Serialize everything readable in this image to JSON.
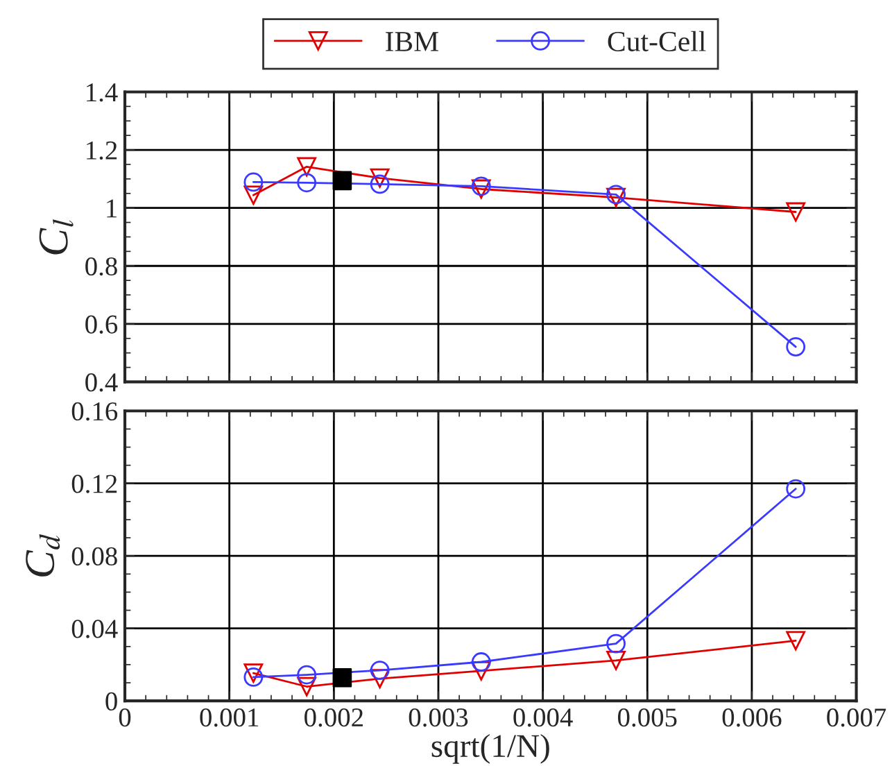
{
  "chart_data": [
    {
      "type": "line",
      "ylabel": "C$_{l}$",
      "xlim": [
        0,
        0.007
      ],
      "ylim": [
        0.4,
        1.4
      ],
      "yticks": [
        0.4,
        0.6,
        0.8,
        1,
        1.2,
        1.4
      ],
      "tick_labels": "y",
      "grid": true,
      "legend": "top",
      "series": [
        {
          "type": "scatter",
          "marker": "square",
          "color": "#000000",
          "x": [
            0.00208
          ],
          "values": [
            1.094
          ]
        },
        {
          "name": "IBM",
          "marker": "triangle",
          "color": "#e00000",
          "x": [
            0.00123,
            0.00174,
            0.00244,
            0.00341,
            0.0047,
            0.00642
          ],
          "values": [
            1.044,
            1.142,
            1.103,
            1.065,
            1.036,
            0.986
          ]
        },
        {
          "name": "Cut-Cell",
          "marker": "circle",
          "color": "#3a3aff",
          "x": [
            0.00123,
            0.00174,
            0.00244,
            0.00341,
            0.0047,
            0.00642
          ],
          "values": [
            1.089,
            1.087,
            1.082,
            1.075,
            1.046,
            0.521
          ]
        }
      ]
    },
    {
      "type": "line",
      "ylabel": "C$_{d}$",
      "xlabel": "sqrt(1/N)",
      "xlim": [
        0,
        0.007
      ],
      "xticks": [
        0,
        0.001,
        0.002,
        0.003,
        0.004,
        0.005,
        0.006,
        0.007
      ],
      "ylim": [
        0,
        0.16
      ],
      "yticks": [
        0,
        0.04,
        0.08,
        0.12,
        0.16
      ],
      "grid": true,
      "series": [
        {
          "type": "scatter",
          "marker": "square",
          "color": "#000000",
          "x": [
            0.00208
          ],
          "values": [
            0.0128
          ]
        },
        {
          "marker": "triangle",
          "color": "#e00000",
          "x": [
            0.00123,
            0.00174,
            0.00244,
            0.00341,
            0.0047,
            0.00642
          ],
          "values": [
            0.0153,
            0.0079,
            0.0123,
            0.0166,
            0.0223,
            0.0332
          ]
        },
        {
          "marker": "circle",
          "color": "#3a3aff",
          "x": [
            0.00123,
            0.00174,
            0.00244,
            0.00341,
            0.0047,
            0.00642
          ],
          "values": [
            0.0131,
            0.0144,
            0.0169,
            0.0215,
            0.0316,
            0.117
          ]
        }
      ]
    }
  ]
}
